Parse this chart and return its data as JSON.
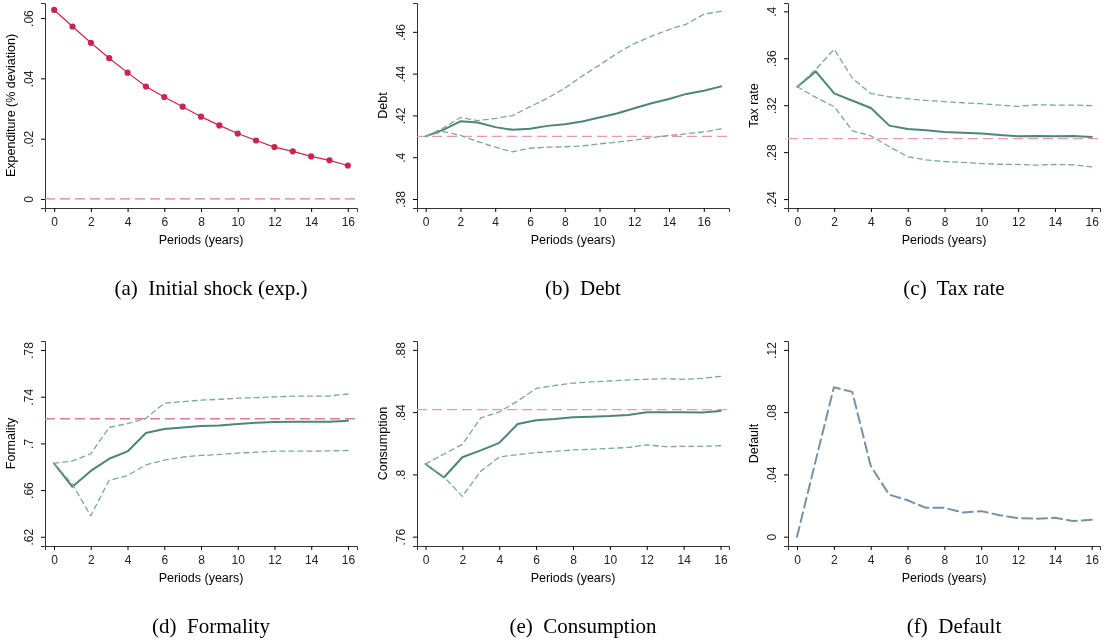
{
  "chart_data": [
    {
      "type": "line",
      "title": "(a)  Initial shock (exp.)",
      "xlabel": "Periods (years)",
      "ylabel": "Expenditure (% deviation)",
      "x": [
        0,
        1,
        2,
        3,
        4,
        5,
        6,
        7,
        8,
        9,
        10,
        11,
        12,
        13,
        14,
        15,
        16
      ],
      "xlim": [
        -0.5,
        16.5
      ],
      "xticks": [
        0,
        2,
        4,
        6,
        8,
        10,
        12,
        14,
        16
      ],
      "ylim": [
        -0.003,
        0.065
      ],
      "yticks": [
        {
          "value": 0,
          "label": "0"
        },
        {
          "value": 0.02,
          "label": ".02"
        },
        {
          "value": 0.04,
          "label": ".04"
        },
        {
          "value": 0.06,
          "label": ".06"
        }
      ],
      "marker": "circle",
      "grid": false,
      "series": [
        {
          "color": "#c8264e",
          "line_style": "solid",
          "values": [
            0.0627,
            0.0572,
            0.0518,
            0.0467,
            0.0419,
            0.0373,
            0.0338,
            0.0306,
            0.0273,
            0.0244,
            0.0217,
            0.0194,
            0.0172,
            0.0158,
            0.0141,
            0.0128,
            0.0111
          ]
        }
      ],
      "ref_lines": [
        {
          "axis": "y",
          "value": 0,
          "color": "#e07a94",
          "line_style": "dashed"
        }
      ]
    },
    {
      "type": "line",
      "title": "(b)  Debt",
      "xlabel": "Periods (years)",
      "ylabel": "Debt",
      "x": [
        0,
        1,
        2,
        3,
        4,
        5,
        6,
        7,
        8,
        9,
        10,
        11,
        12,
        13,
        14,
        15,
        16,
        17
      ],
      "xlim": [
        -0.5,
        17.45
      ],
      "xticks": [
        0,
        2,
        4,
        6,
        8,
        10,
        12,
        14,
        16
      ],
      "ylim": [
        0.3757,
        0.4738
      ],
      "yticks": [
        {
          "value": 0.38,
          "label": ".38"
        },
        {
          "value": 0.4,
          "label": ".4"
        },
        {
          "value": 0.42,
          "label": ".42"
        },
        {
          "value": 0.44,
          "label": ".44"
        },
        {
          "value": 0.46,
          "label": ".46"
        }
      ],
      "marker": "none",
      "grid": false,
      "series": [
        {
          "color": "#4e8578",
          "line_style": "solid",
          "values": [
            0.41,
            0.4131,
            0.4172,
            0.4166,
            0.4144,
            0.4131,
            0.4136,
            0.415,
            0.4158,
            0.4171,
            0.419,
            0.4209,
            0.4234,
            0.4258,
            0.4279,
            0.4303,
            0.4318,
            0.4339
          ]
        },
        {
          "color": "#7aa89b",
          "line_style": "dashed",
          "values": [
            0.41,
            0.4139,
            0.419,
            0.4175,
            0.4186,
            0.4199,
            0.4242,
            0.4282,
            0.433,
            0.4388,
            0.4441,
            0.4497,
            0.4544,
            0.4579,
            0.4611,
            0.4637,
            0.4684,
            0.4699
          ]
        },
        {
          "color": "#7aa89b",
          "line_style": "dashed",
          "values": [
            0.41,
            0.4123,
            0.4104,
            0.4075,
            0.4048,
            0.4026,
            0.4043,
            0.4048,
            0.405,
            0.4054,
            0.4064,
            0.4072,
            0.4082,
            0.4094,
            0.4104,
            0.4112,
            0.4121,
            0.4136
          ]
        }
      ],
      "ref_lines": [
        {
          "axis": "y",
          "value": 0.41,
          "color": "#e89aac",
          "line_style": "dashed"
        }
      ]
    },
    {
      "type": "line",
      "title": "(c)  Tax rate",
      "xlabel": "Periods (years)",
      "ylabel": "Tax rate",
      "x": [
        0,
        1,
        2,
        3,
        4,
        5,
        6,
        7,
        8,
        9,
        10,
        11,
        12,
        13,
        14,
        15,
        16
      ],
      "xlim": [
        -0.51,
        16.45
      ],
      "xticks": [
        0,
        2,
        4,
        6,
        8,
        10,
        12,
        14,
        16
      ],
      "ylim": [
        0.2324,
        0.4071
      ],
      "yticks": [
        {
          "value": 0.24,
          "label": ".24"
        },
        {
          "value": 0.28,
          "label": ".28"
        },
        {
          "value": 0.32,
          "label": ".32"
        },
        {
          "value": 0.36,
          "label": ".36"
        },
        {
          "value": 0.4,
          "label": ".4"
        }
      ],
      "marker": "none",
      "grid": false,
      "series": [
        {
          "color": "#4e8578",
          "line_style": "solid",
          "values": [
            0.3357,
            0.3488,
            0.3301,
            0.3238,
            0.3176,
            0.3026,
            0.2998,
            0.2986,
            0.2972,
            0.2966,
            0.2958,
            0.2947,
            0.2935,
            0.2938,
            0.2935,
            0.2938,
            0.293
          ]
        },
        {
          "color": "#7aa89b",
          "line_style": "dashed",
          "values": [
            0.3357,
            0.3505,
            0.3677,
            0.3428,
            0.3298,
            0.3272,
            0.3255,
            0.3241,
            0.323,
            0.3221,
            0.3213,
            0.3201,
            0.319,
            0.3204,
            0.3201,
            0.3201,
            0.3196
          ]
        },
        {
          "color": "#7aa89b",
          "line_style": "dashed",
          "values": [
            0.3357,
            0.3267,
            0.3187,
            0.2981,
            0.2938,
            0.2847,
            0.276,
            0.2734,
            0.272,
            0.2712,
            0.2703,
            0.2697,
            0.2695,
            0.2689,
            0.2695,
            0.2692,
            0.2675
          ]
        }
      ],
      "ref_lines": [
        {
          "axis": "y",
          "value": 0.2915,
          "color": "#e89aac",
          "line_style": "dashed"
        }
      ]
    },
    {
      "type": "line",
      "title": "(d)  Formality",
      "xlabel": "Periods (years)",
      "ylabel": "Formality",
      "x": [
        0,
        1,
        2,
        3,
        4,
        5,
        6,
        7,
        8,
        9,
        10,
        11,
        12,
        13,
        14,
        15,
        16
      ],
      "xlim": [
        -0.49,
        16.49
      ],
      "xticks": [
        0,
        2,
        4,
        6,
        8,
        10,
        12,
        14,
        16
      ],
      "ylim": [
        0.6121,
        0.7877
      ],
      "yticks": [
        {
          "value": 0.62,
          "label": ".62"
        },
        {
          "value": 0.66,
          "label": ".66"
        },
        {
          "value": 0.7,
          "label": ".7"
        },
        {
          "value": 0.74,
          "label": ".74"
        },
        {
          "value": 0.78,
          "label": ".78"
        }
      ],
      "marker": "none",
      "grid": false,
      "series": [
        {
          "color": "#4e8578",
          "line_style": "solid",
          "values": [
            0.6829,
            0.6628,
            0.6764,
            0.6868,
            0.6931,
            0.7089,
            0.7123,
            0.7137,
            0.7149,
            0.7154,
            0.7166,
            0.7177,
            0.7183,
            0.7186,
            0.7186,
            0.7186,
            0.7194
          ]
        },
        {
          "color": "#7aa89b",
          "line_style": "dashed",
          "values": [
            0.6829,
            0.6849,
            0.6911,
            0.7137,
            0.7169,
            0.7214,
            0.7344,
            0.7358,
            0.737,
            0.7378,
            0.7387,
            0.7392,
            0.7398,
            0.7404,
            0.7404,
            0.7406,
            0.7423
          ]
        },
        {
          "color": "#7aa89b",
          "line_style": "dashed",
          "values": [
            0.6829,
            0.665,
            0.6381,
            0.6684,
            0.6724,
            0.6815,
            0.6857,
            0.6883,
            0.6897,
            0.6905,
            0.6917,
            0.6925,
            0.6933,
            0.6933,
            0.6933,
            0.6936,
            0.6939
          ]
        }
      ],
      "ref_lines": [
        {
          "axis": "y",
          "value": 0.7211,
          "color": "#e07a94",
          "line_style": "dashed"
        }
      ]
    },
    {
      "type": "line",
      "title": "(e)  Consumption",
      "xlabel": "Periods (years)",
      "ylabel": "Consumption",
      "x": [
        0,
        1,
        2,
        3,
        4,
        5,
        6,
        7,
        8,
        9,
        10,
        11,
        12,
        13,
        14,
        15,
        16
      ],
      "xlim": [
        -0.46,
        16.46
      ],
      "xticks": [
        0,
        2,
        4,
        6,
        8,
        10,
        12,
        14,
        16
      ],
      "ylim": [
        0.754,
        0.8857
      ],
      "yticks": [
        {
          "value": 0.76,
          "label": ".76"
        },
        {
          "value": 0.8,
          "label": ".8"
        },
        {
          "value": 0.84,
          "label": ".84"
        },
        {
          "value": 0.88,
          "label": ".88"
        }
      ],
      "marker": "none",
      "grid": false,
      "series": [
        {
          "color": "#4e8578",
          "line_style": "solid",
          "values": [
            0.8067,
            0.798,
            0.811,
            0.8154,
            0.8203,
            0.8324,
            0.8348,
            0.8356,
            0.8367,
            0.8371,
            0.8375,
            0.8382,
            0.8399,
            0.8399,
            0.8399,
            0.8397,
            0.8407
          ]
        },
        {
          "color": "#7aa89b",
          "line_style": "dashed",
          "values": [
            0.8067,
            0.8131,
            0.8193,
            0.8363,
            0.8401,
            0.8471,
            0.8552,
            0.8571,
            0.8586,
            0.8594,
            0.86,
            0.8607,
            0.8611,
            0.8615,
            0.8611,
            0.8617,
            0.863
          ]
        },
        {
          "color": "#7aa89b",
          "line_style": "dashed",
          "values": [
            0.8067,
            0.7984,
            0.7859,
            0.8021,
            0.8112,
            0.8127,
            0.814,
            0.8148,
            0.8157,
            0.8161,
            0.8167,
            0.8173,
            0.819,
            0.8178,
            0.818,
            0.818,
            0.8184
          ]
        }
      ],
      "ref_lines": [
        {
          "axis": "y",
          "value": 0.8416,
          "color": "#e89aac",
          "line_style": "dashed"
        }
      ]
    },
    {
      "type": "line",
      "title": "(f)  Default",
      "xlabel": "Periods (years)",
      "ylabel": "Default",
      "x": [
        0,
        1,
        2,
        3,
        4,
        5,
        6,
        7,
        8,
        9,
        10,
        11,
        12,
        13,
        14,
        15,
        16
      ],
      "xlim": [
        -0.49,
        16.45
      ],
      "xticks": [
        0,
        2,
        4,
        6,
        8,
        10,
        12,
        14,
        16
      ],
      "ylim": [
        -0.006,
        0.1257
      ],
      "yticks": [
        {
          "value": 0,
          "label": "0"
        },
        {
          "value": 0.04,
          "label": ".04"
        },
        {
          "value": 0.08,
          "label": ".08"
        },
        {
          "value": 0.12,
          "label": ".12"
        }
      ],
      "marker": "none",
      "grid": false,
      "series": [
        {
          "color": "#7891a8",
          "line_style": "dashed",
          "values": [
            0,
            0.0482,
            0.096,
            0.093,
            0.0455,
            0.027,
            0.0234,
            0.0185,
            0.0185,
            0.0155,
            0.0164,
            0.0138,
            0.0119,
            0.0115,
            0.0121,
            0.01,
            0.0108
          ]
        }
      ]
    }
  ]
}
